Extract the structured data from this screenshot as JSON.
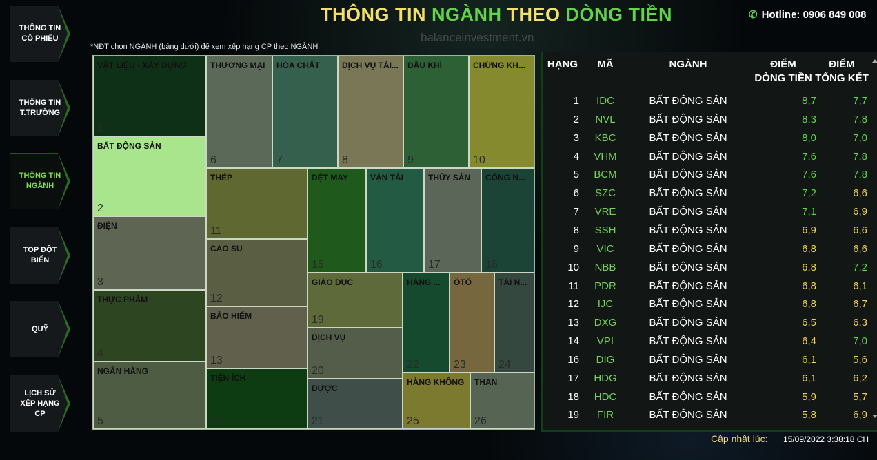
{
  "header": {
    "title_part1": "THÔNG TIN ",
    "title_part2": "NGÀNH ",
    "title_part3": "THEO ",
    "title_part4": "DÒNG TIỀN",
    "hotline": "Hotline: 0906 849 008",
    "watermark": "balanceinvestment.vn",
    "note": "*NĐT chọn NGÀNH (bảng dưới) để xem xếp hạng CP theo NGÀNH"
  },
  "nav": [
    {
      "label": "THÔNG TIN CỔ PHIẾU",
      "active": false
    },
    {
      "label": "THÔNG TIN T.TRƯỜNG",
      "active": false
    },
    {
      "label": "THÔNG TIN NGÀNH",
      "active": true
    },
    {
      "label": "TOP ĐỘT BIẾN",
      "active": false
    },
    {
      "label": "QUỸ",
      "active": false
    },
    {
      "label": "LỊCH SỬ XẾP HẠNG CP",
      "active": false
    }
  ],
  "treemap": [
    {
      "label": "VẬT LIỆU - XÂY DỰNG",
      "num": "1",
      "color": "#0e3016"
    },
    {
      "label": "BẤT ĐỘNG SẢN",
      "num": "2",
      "color": "#a8e58c"
    },
    {
      "label": "ĐIỆN",
      "num": "3",
      "color": "#5e6552"
    },
    {
      "label": "THỰC PHẨM",
      "num": "4",
      "color": "#2e4522"
    },
    {
      "label": "NGÂN HÀNG",
      "num": "5",
      "color": "#4e5c44"
    },
    {
      "label": "THƯƠNG MẠI",
      "num": "6",
      "color": "#5b6a58"
    },
    {
      "label": "HÓA CHẤT",
      "num": "7",
      "color": "#36604e"
    },
    {
      "label": "DỊCH VỤ TÀI...",
      "num": "8",
      "color": "#7a7756"
    },
    {
      "label": "DẦU KHÍ",
      "num": "9",
      "color": "#2d6034"
    },
    {
      "label": "CHỨNG KH...",
      "num": "10",
      "color": "#858a2e"
    },
    {
      "label": "THÉP",
      "num": "11",
      "color": "#5e6830"
    },
    {
      "label": "CAO SU",
      "num": "12",
      "color": "#5a5f44"
    },
    {
      "label": "BẢO HIỂM",
      "num": "13",
      "color": "#60604c"
    },
    {
      "label": "TIỆN ÍCH",
      "num": "14",
      "color": "#0d3c12"
    },
    {
      "label": "DỆT MAY",
      "num": "15",
      "color": "#1f5a1c"
    },
    {
      "label": "VẬN TẢI",
      "num": "16",
      "color": "#235a44"
    },
    {
      "label": "THỦY SẢN",
      "num": "17",
      "color": "#5c6658"
    },
    {
      "label": "CÔNG N...",
      "num": "18",
      "color": "#1b4436"
    },
    {
      "label": "GIÁO DỤC",
      "num": "19",
      "color": "#5e6a3a"
    },
    {
      "label": "DỊCH VỤ",
      "num": "20",
      "color": "#545c4a"
    },
    {
      "label": "DƯỢC",
      "num": "21",
      "color": "#3f4e48"
    },
    {
      "label": "HÀNG ...",
      "num": "22",
      "color": "#164a2e"
    },
    {
      "label": "ÔTÔ",
      "num": "23",
      "color": "#76673e"
    },
    {
      "label": "TÀI N...",
      "num": "24",
      "color": "#34483f"
    },
    {
      "label": "HÀNG KHÔNG",
      "num": "25",
      "color": "#7c7a2e"
    },
    {
      "label": "THAN",
      "num": "26",
      "color": "#566454"
    }
  ],
  "table": {
    "headers": {
      "rank": "HẠNG",
      "ma": "MÃ",
      "nganh": "NGÀNH",
      "d1_line1": "ĐIỂM",
      "d1_line2": "DÒNG TIỀN",
      "d2_line1": "ĐIỂM",
      "d2_line2": "TỔNG KẾT"
    },
    "rows": [
      {
        "rank": "1",
        "ma": "IDC",
        "nganh": "BẤT ĐỘNG SẢN",
        "d1": "8,7",
        "d2": "7,7"
      },
      {
        "rank": "2",
        "ma": "NVL",
        "nganh": "BẤT ĐỘNG SẢN",
        "d1": "8,3",
        "d2": "7,8"
      },
      {
        "rank": "3",
        "ma": "KBC",
        "nganh": "BẤT ĐỘNG SẢN",
        "d1": "8,0",
        "d2": "7,0"
      },
      {
        "rank": "4",
        "ma": "VHM",
        "nganh": "BẤT ĐỘNG SẢN",
        "d1": "7,6",
        "d2": "7,8"
      },
      {
        "rank": "5",
        "ma": "BCM",
        "nganh": "BẤT ĐỘNG SẢN",
        "d1": "7,6",
        "d2": "7,8"
      },
      {
        "rank": "6",
        "ma": "SZC",
        "nganh": "BẤT ĐỘNG SẢN",
        "d1": "7,2",
        "d2": "6,6"
      },
      {
        "rank": "7",
        "ma": "VRE",
        "nganh": "BẤT ĐỘNG SẢN",
        "d1": "7,1",
        "d2": "6,9"
      },
      {
        "rank": "8",
        "ma": "SSH",
        "nganh": "BẤT ĐỘNG SẢN",
        "d1": "6,9",
        "d2": "6,6"
      },
      {
        "rank": "9",
        "ma": "VIC",
        "nganh": "BẤT ĐỘNG SẢN",
        "d1": "6,8",
        "d2": "6,6"
      },
      {
        "rank": "10",
        "ma": "NBB",
        "nganh": "BẤT ĐỘNG SẢN",
        "d1": "6,8",
        "d2": "7,2"
      },
      {
        "rank": "11",
        "ma": "PDR",
        "nganh": "BẤT ĐỘNG SẢN",
        "d1": "6,8",
        "d2": "6,1"
      },
      {
        "rank": "12",
        "ma": "IJC",
        "nganh": "BẤT ĐỘNG SẢN",
        "d1": "6,8",
        "d2": "6,7"
      },
      {
        "rank": "13",
        "ma": "DXG",
        "nganh": "BẤT ĐỘNG SẢN",
        "d1": "6,5",
        "d2": "6,3"
      },
      {
        "rank": "14",
        "ma": "VPI",
        "nganh": "BẤT ĐỘNG SẢN",
        "d1": "6,4",
        "d2": "7,0"
      },
      {
        "rank": "16",
        "ma": "DIG",
        "nganh": "BẤT ĐỘNG SẢN",
        "d1": "6,1",
        "d2": "5,6"
      },
      {
        "rank": "17",
        "ma": "HDG",
        "nganh": "BẤT ĐỘNG SẢN",
        "d1": "6,1",
        "d2": "6,2"
      },
      {
        "rank": "18",
        "ma": "HDC",
        "nganh": "BẤT ĐỘNG SẢN",
        "d1": "5,9",
        "d2": "5,7"
      },
      {
        "rank": "19",
        "ma": "FIR",
        "nganh": "BẤT ĐỘNG SẢN",
        "d1": "5,8",
        "d2": "6,9"
      }
    ]
  },
  "footer": {
    "updated_label": "Cập nhật lúc:",
    "updated_value": "15/09/2022 3:38:18 CH"
  },
  "colors": {
    "accent_green": "#62d44a",
    "accent_yellow": "#f2e06a",
    "score_high": "#5cd844",
    "score_mid": "#f0d450"
  },
  "icons": {
    "hotline": "phone-icon"
  }
}
